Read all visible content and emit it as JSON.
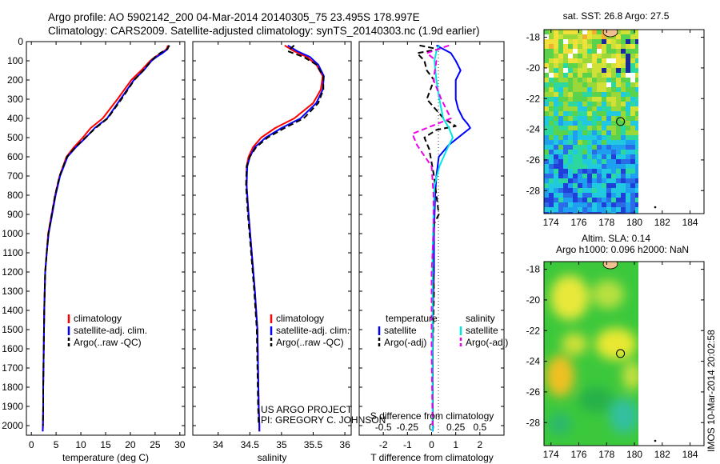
{
  "title_line1": "Argo profile: AO 5902142_200 04-Mar-2014 20140305_75 23.495S 178.997E",
  "title_line2": "Climatology: CARS2009. Satellite-adjusted climatology: synTS_20140303.nc (1.9d earlier)",
  "side_stamp": "IMOS 10-Mar-2014 20:02:58",
  "credit_line1": "US ARGO PROJECT",
  "credit_line2": "PI: GREGORY C. JOHNSON",
  "colors": {
    "climatology": "#ff0000",
    "satellite": "#0000ff",
    "argo": "#000000",
    "sal_satellite": "#00e5e5",
    "sal_argo": "#ee00ee"
  },
  "chart_data": [
    {
      "type": "line",
      "name": "temperature",
      "xlabel": "temperature (deg C)",
      "xlim": [
        -1,
        31
      ],
      "ylim": [
        2050,
        0
      ],
      "xticks": [
        0,
        5,
        10,
        15,
        20,
        25,
        30
      ],
      "yticks": [
        0,
        100,
        200,
        300,
        400,
        500,
        600,
        700,
        800,
        900,
        1000,
        1100,
        1200,
        1300,
        1400,
        1500,
        1600,
        1700,
        1800,
        1900,
        2000
      ],
      "legend": [
        "climatology",
        "satellite-adj. clim.",
        "Argo(..raw -QC)"
      ],
      "series": [
        {
          "name": "climatology",
          "color": "#ff0000",
          "style": "solid",
          "x": [
            27.6,
            27.3,
            26.2,
            25,
            24,
            22.2,
            20.2,
            17.4,
            14.4,
            12,
            10.4,
            8.6,
            7.1,
            5.7,
            4.8,
            4.1,
            3.4,
            3.1,
            2.8,
            2.6,
            2.5,
            2.4,
            2.4,
            2.35,
            2.3
          ],
          "y": [
            20,
            40,
            60,
            80,
            100,
            150,
            200,
            300,
            400,
            450,
            500,
            550,
            600,
            700,
            800,
            900,
            1000,
            1100,
            1200,
            1400,
            1600,
            1800,
            1900,
            2000,
            2030
          ]
        },
        {
          "name": "satellite-adj. clim.",
          "color": "#0000ff",
          "style": "solid",
          "x": [
            27.8,
            27.5,
            26.5,
            25.3,
            24.3,
            22.7,
            20.7,
            18,
            15.3,
            12.8,
            11,
            9,
            7.3,
            5.8,
            4.9,
            4.2,
            3.5,
            3.1,
            2.8,
            2.6,
            2.5,
            2.4,
            2.4,
            2.35,
            2.3
          ],
          "y": [
            20,
            40,
            60,
            80,
            100,
            150,
            200,
            300,
            400,
            450,
            500,
            550,
            600,
            700,
            800,
            900,
            1000,
            1100,
            1200,
            1400,
            1600,
            1800,
            1900,
            2000,
            2030
          ]
        },
        {
          "name": "Argo(..raw -QC)",
          "color": "#000000",
          "style": "dash",
          "x": [
            27.9,
            27.4,
            26,
            25,
            24.2,
            22.6,
            20.8,
            18.2,
            15.4,
            13,
            10.9,
            8.9,
            7.2,
            5.7,
            4.8,
            4.1,
            3.45,
            3.1,
            2.8,
            2.6,
            2.5,
            2.4,
            2.4,
            2.35
          ],
          "y": [
            20,
            40,
            60,
            80,
            100,
            150,
            200,
            300,
            400,
            450,
            500,
            550,
            600,
            700,
            800,
            900,
            1000,
            1100,
            1200,
            1400,
            1600,
            1800,
            1900,
            2000
          ]
        }
      ]
    },
    {
      "type": "line",
      "name": "salinity",
      "xlabel": "salinity",
      "xlim": [
        33.6,
        36.1
      ],
      "ylim": [
        2050,
        0
      ],
      "xticks": [
        34,
        34.5,
        35,
        35.5,
        36
      ],
      "legend": [
        "climatology",
        "satellite-adj. clim.",
        "Argo(..raw -QC)"
      ],
      "series": [
        {
          "name": "climatology",
          "color": "#ff0000",
          "style": "solid",
          "x": [
            35.05,
            35.2,
            35.4,
            35.55,
            35.65,
            35.62,
            35.5,
            35.2,
            34.9,
            34.68,
            34.55,
            34.48,
            34.45,
            34.45,
            34.48,
            34.53,
            34.58,
            34.62,
            34.63,
            34.64,
            34.65,
            34.65
          ],
          "y": [
            20,
            50,
            80,
            120,
            180,
            250,
            320,
            400,
            450,
            500,
            550,
            600,
            650,
            750,
            900,
            1100,
            1300,
            1500,
            1700,
            1900,
            2000,
            2030
          ]
        },
        {
          "name": "satellite-adj. clim.",
          "color": "#0000ff",
          "style": "solid",
          "x": [
            35.1,
            35.25,
            35.45,
            35.58,
            35.67,
            35.65,
            35.55,
            35.3,
            35.0,
            34.75,
            34.58,
            34.5,
            34.46,
            34.45,
            34.48,
            34.53,
            34.58,
            34.62,
            34.63,
            34.64,
            34.65,
            34.65
          ],
          "y": [
            20,
            50,
            80,
            120,
            180,
            250,
            320,
            400,
            450,
            500,
            550,
            600,
            650,
            750,
            900,
            1100,
            1300,
            1500,
            1700,
            1900,
            2000,
            2030
          ]
        },
        {
          "name": "Argo(..raw -QC)",
          "color": "#000000",
          "style": "dash",
          "x": [
            35.2,
            35.1,
            35.35,
            35.55,
            35.66,
            35.66,
            35.58,
            35.35,
            35.05,
            34.78,
            34.6,
            34.5,
            34.45,
            34.44,
            34.47,
            34.52,
            34.57,
            34.61,
            34.62,
            34.63,
            34.64
          ],
          "y": [
            20,
            50,
            80,
            120,
            180,
            250,
            320,
            400,
            450,
            500,
            550,
            600,
            650,
            750,
            900,
            1100,
            1300,
            1500,
            1700,
            1900,
            2000
          ]
        }
      ]
    },
    {
      "type": "line",
      "name": "differences",
      "xlabel": "T difference from climatology",
      "xlabel_top": "S difference from climatology",
      "xlim": [
        -3,
        3
      ],
      "ylim": [
        2050,
        0
      ],
      "xticks": [
        -2,
        -1,
        0,
        1,
        2
      ],
      "xticks_sal": [
        -0.5,
        -0.25,
        0,
        0.25,
        0.5
      ],
      "xticks_sal_labels": [
        "-0.5",
        "-0.25",
        "0",
        "0.25",
        "0.5"
      ],
      "legend_temperature": [
        "temperature",
        "satellite",
        "Argo(-adj)"
      ],
      "legend_salinity": [
        "salinity",
        "satellite",
        "Argo(-adj)"
      ],
      "series": [
        {
          "name": "temperature satellite",
          "color": "#0000ff",
          "style": "solid",
          "x": [
            0.2,
            0.5,
            0.8,
            1.0,
            1.2,
            1.0,
            1.0,
            1.1,
            1.3,
            1.5,
            1.6,
            1.3,
            0.7,
            0.3,
            0.2,
            0.15,
            0.1,
            0.1,
            0.05,
            0.05,
            0.05,
            0.05,
            0.05
          ],
          "y": [
            20,
            40,
            60,
            100,
            150,
            200,
            300,
            350,
            400,
            430,
            450,
            480,
            540,
            600,
            700,
            800,
            1000,
            1200,
            1400,
            1600,
            1800,
            2000,
            2030
          ]
        },
        {
          "name": "temperature Argo(-adj)",
          "color": "#000000",
          "style": "dash",
          "x": [
            -0.5,
            0.3,
            -0.6,
            -0.3,
            -0.2,
            0.1,
            -0.2,
            0.5,
            1.0,
            0.2,
            -0.3,
            -0.1,
            0.1,
            0.3,
            0.1,
            0.05,
            0.1,
            0.05,
            0.05,
            0.05
          ],
          "y": [
            20,
            40,
            60,
            100,
            150,
            200,
            300,
            400,
            440,
            460,
            500,
            560,
            700,
            900,
            950,
            1100,
            1300,
            1600,
            1800,
            2000
          ]
        },
        {
          "name": "salinity satellite",
          "color": "#00e5e5",
          "style": "solid",
          "x": [
            0.08,
            0.05,
            0.03,
            0.05,
            0.08,
            0.12,
            0.18,
            0.22,
            0.16,
            0.08,
            0.03,
            0.02,
            0.01,
            0.01,
            0.01,
            0.01,
            0.01
          ],
          "y": [
            20,
            50,
            100,
            200,
            300,
            400,
            450,
            500,
            560,
            650,
            750,
            900,
            1100,
            1400,
            1700,
            2000,
            2030
          ]
        },
        {
          "name": "salinity Argo(-adj)",
          "color": "#ee00ee",
          "style": "dash",
          "x": [
            0.18,
            -0.05,
            0.05,
            0.02,
            0.1,
            0.2,
            -0.05,
            -0.2,
            -0.15,
            0.0,
            0.02,
            0.02,
            0.0,
            0.0,
            0.01
          ],
          "y": [
            20,
            60,
            100,
            200,
            300,
            400,
            450,
            480,
            540,
            650,
            800,
            1000,
            1200,
            1600,
            2000
          ]
        }
      ]
    },
    {
      "type": "heatmap",
      "name": "sst-map",
      "title": "sat. SST: 26.8 Argo: 27.5",
      "xlim": [
        173.5,
        185
      ],
      "ylim": [
        -29.5,
        -17.5
      ],
      "xticks": [
        174,
        176,
        178,
        180,
        182,
        184
      ],
      "yticks": [
        -18,
        -20,
        -22,
        -24,
        -26,
        -28
      ],
      "argo_position": [
        178.997,
        -23.495
      ]
    },
    {
      "type": "heatmap",
      "name": "sla-map",
      "title_line1": "Altim. SLA: 0.14",
      "title_line2": "Argo h1000: 0.096 h2000: NaN",
      "xlim": [
        173.5,
        185
      ],
      "ylim": [
        -29.5,
        -17.5
      ],
      "xticks": [
        174,
        176,
        178,
        180,
        182,
        184
      ],
      "yticks": [
        -18,
        -20,
        -22,
        -24,
        -26,
        -28
      ],
      "argo_position": [
        178.997,
        -23.495
      ]
    }
  ]
}
